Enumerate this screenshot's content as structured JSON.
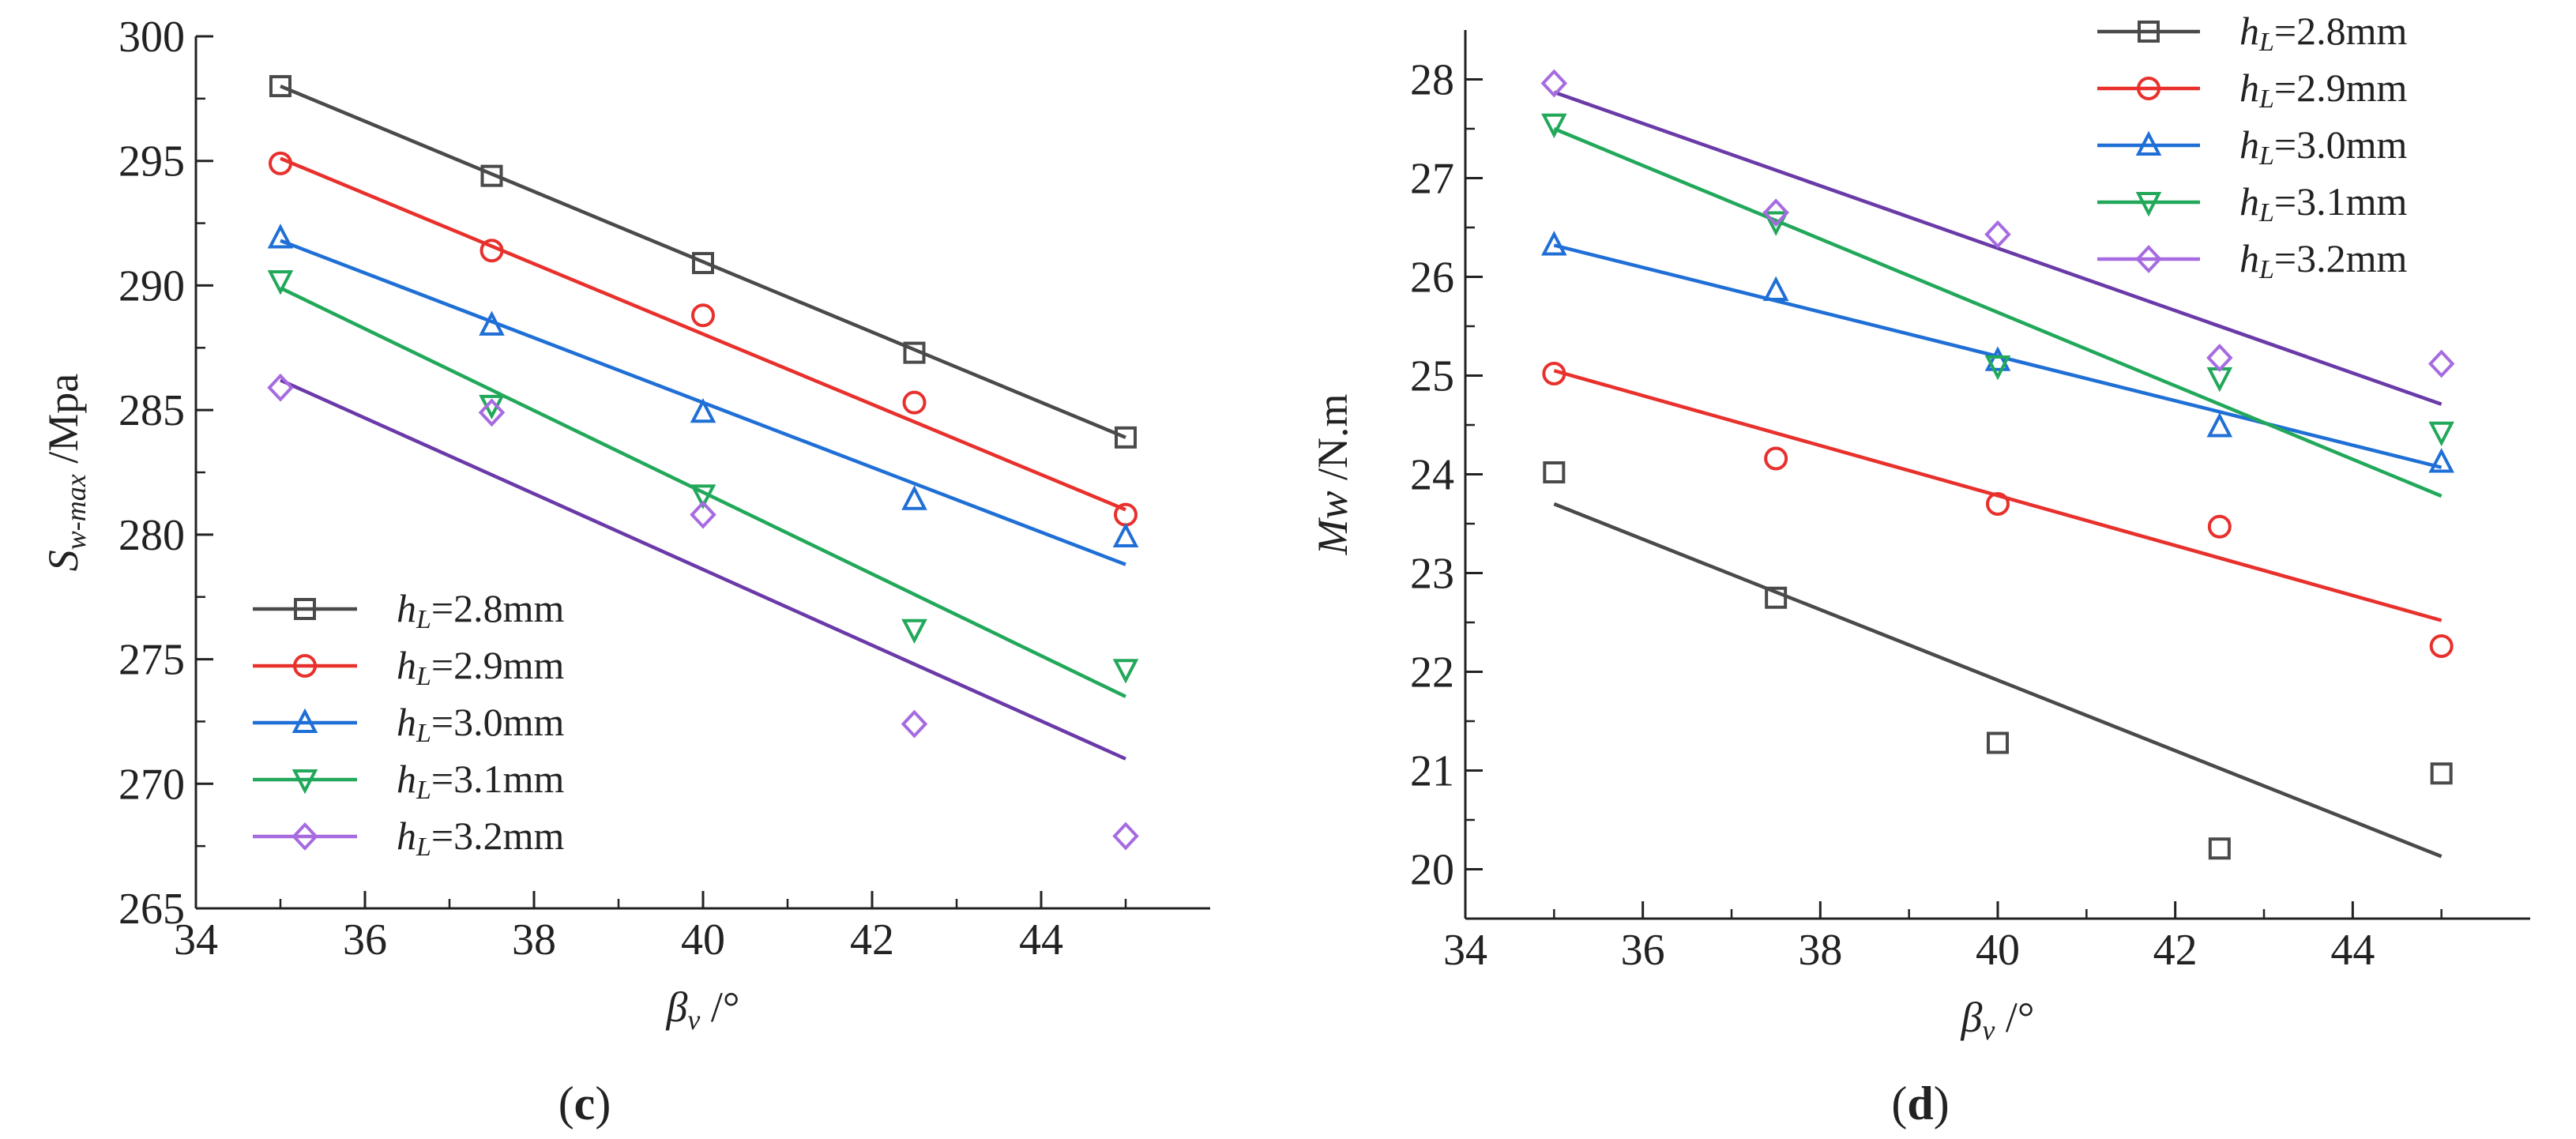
{
  "chart_data": [
    {
      "id": "c",
      "type": "scatter",
      "panel_label": "(c)",
      "panel_letter": "c",
      "xlabel": {
        "symbol": "β",
        "sub": "v",
        "unit": " /°"
      },
      "ylabel": {
        "symbol": "S",
        "sub": "w-max",
        "unit": " /Mpa"
      },
      "xlim": [
        34,
        46
      ],
      "ylim": [
        265,
        300
      ],
      "xticks": [
        34,
        36,
        38,
        40,
        42,
        44
      ],
      "yticks": [
        265,
        270,
        275,
        280,
        285,
        290,
        295,
        300
      ],
      "x": [
        35,
        37.5,
        40,
        42.5,
        45
      ],
      "legend_position": "bottom-left",
      "series": [
        {
          "name": "hL=2.8mm",
          "prefix": "h",
          "sub": "L",
          "value": "=2.8mm",
          "color": "#4a4a4a",
          "marker": "square",
          "values": [
            298.0,
            294.4,
            290.9,
            287.3,
            283.9
          ],
          "fit": [
            298.0,
            283.9
          ]
        },
        {
          "name": "hL=2.9mm",
          "prefix": "h",
          "sub": "L",
          "value": "=2.9mm",
          "color": "#e8302c",
          "marker": "circle",
          "values": [
            294.9,
            291.4,
            288.8,
            285.3,
            280.8
          ],
          "fit": [
            295.1,
            281.0
          ]
        },
        {
          "name": "hL=3.0mm",
          "prefix": "h",
          "sub": "L",
          "value": "=3.0mm",
          "color": "#1f6fd6",
          "marker": "triangle-up",
          "values": [
            291.9,
            288.4,
            284.9,
            281.4,
            279.9
          ],
          "fit": [
            291.8,
            278.8
          ]
        },
        {
          "name": "hL=3.1mm",
          "prefix": "h",
          "sub": "L",
          "value": "=3.1mm",
          "color": "#22a85a",
          "marker": "triangle-down",
          "values": [
            290.2,
            285.2,
            281.6,
            276.2,
            274.6
          ],
          "fit": [
            289.9,
            273.5
          ]
        },
        {
          "name": "hL=3.2mm",
          "prefix": "h",
          "sub": "L",
          "value": "=3.2mm",
          "color": "#a66be0",
          "marker": "diamond",
          "values": [
            285.9,
            284.9,
            280.8,
            272.4,
            267.9
          ],
          "fit": [
            286.2,
            271.0
          ],
          "fit_color": "#6a3aa8"
        }
      ]
    },
    {
      "id": "d",
      "type": "scatter",
      "panel_label": "(d)",
      "panel_letter": "d",
      "xlabel": {
        "symbol": "β",
        "sub": "v",
        "unit": " /°"
      },
      "ylabel": {
        "symbol": "Mw",
        "sub": "",
        "unit": " /N.m"
      },
      "xlim": [
        34,
        46
      ],
      "ylim": [
        19.5,
        28.5
      ],
      "xticks": [
        34,
        36,
        38,
        40,
        42,
        44
      ],
      "yticks": [
        20,
        21,
        22,
        23,
        24,
        25,
        26,
        27,
        28
      ],
      "x": [
        35,
        37.5,
        40,
        42.5,
        45
      ],
      "legend_position": "top-right",
      "series": [
        {
          "name": "hL=2.8mm",
          "prefix": "h",
          "sub": "L",
          "value": "=2.8mm",
          "color": "#4a4a4a",
          "marker": "square",
          "values": [
            24.02,
            22.75,
            21.28,
            20.21,
            20.97
          ],
          "fit": [
            23.7,
            20.13
          ]
        },
        {
          "name": "hL=2.9mm",
          "prefix": "h",
          "sub": "L",
          "value": "=2.9mm",
          "color": "#e8302c",
          "marker": "circle",
          "values": [
            25.02,
            24.16,
            23.7,
            23.47,
            22.26
          ],
          "fit": [
            25.05,
            22.52
          ]
        },
        {
          "name": "hL=3.0mm",
          "prefix": "h",
          "sub": "L",
          "value": "=3.0mm",
          "color": "#1f6fd6",
          "marker": "triangle-up",
          "values": [
            26.32,
            25.86,
            25.15,
            24.48,
            24.12
          ],
          "fit": [
            26.32,
            24.07
          ]
        },
        {
          "name": "hL=3.1mm",
          "prefix": "h",
          "sub": "L",
          "value": "=3.1mm",
          "color": "#22a85a",
          "marker": "triangle-down",
          "values": [
            27.55,
            26.56,
            25.1,
            24.98,
            24.43
          ],
          "fit": [
            27.5,
            23.78
          ]
        },
        {
          "name": "hL=3.2mm",
          "prefix": "h",
          "sub": "L",
          "value": "=3.2mm",
          "color": "#a66be0",
          "marker": "diamond",
          "values": [
            27.96,
            26.65,
            26.43,
            25.18,
            25.12
          ],
          "fit": [
            27.87,
            24.71
          ],
          "fit_color": "#6a3aa8"
        }
      ]
    }
  ]
}
